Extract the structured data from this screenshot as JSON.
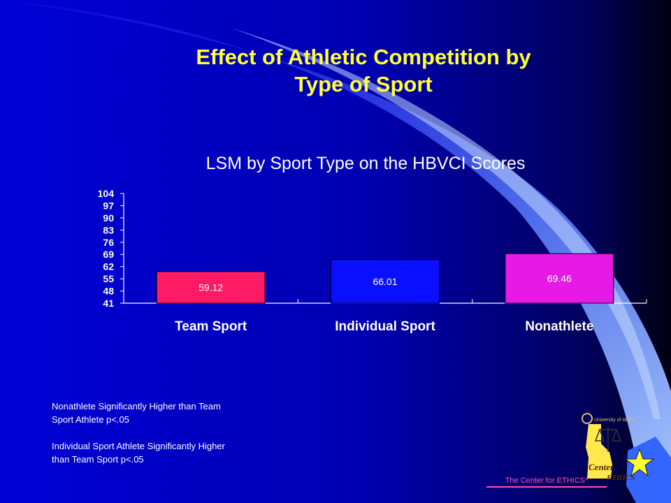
{
  "slide": {
    "title_lines": [
      "Effect of Athletic Competition by",
      "Type of Sport"
    ],
    "notes": [
      [
        "Nonathlete  Significantly Higher than Team",
        "Sport Athlete   p<.05"
      ],
      [
        "Individual Sport Athlete Significantly Higher",
        "than Team  Sport p<.05"
      ]
    ],
    "footer": "The Center for ETHICS*",
    "logo_lines": [
      "Center",
      "ETHICS",
      "University of Idaho"
    ],
    "colors": {
      "background": "#0000cc",
      "title": "#ffff33",
      "footer": "#ff4fa8"
    }
  },
  "chart_data": {
    "type": "bar",
    "title": "LSM by Sport Type on the HBVCI Scores",
    "categories": [
      "Team Sport",
      "Individual Sport",
      "Nonathlete"
    ],
    "values": [
      59.12,
      66.01,
      69.46
    ],
    "value_labels": [
      "59.12",
      "66.01",
      "69.46"
    ],
    "colors": [
      "#ff1a66",
      "#0a10ff",
      "#e619e6"
    ],
    "ylim": [
      41,
      104
    ],
    "yticks": [
      104,
      97,
      90,
      83,
      76,
      69,
      62,
      55,
      48,
      41
    ],
    "xlabel": "",
    "ylabel": "",
    "grid": false,
    "legend": "none"
  }
}
